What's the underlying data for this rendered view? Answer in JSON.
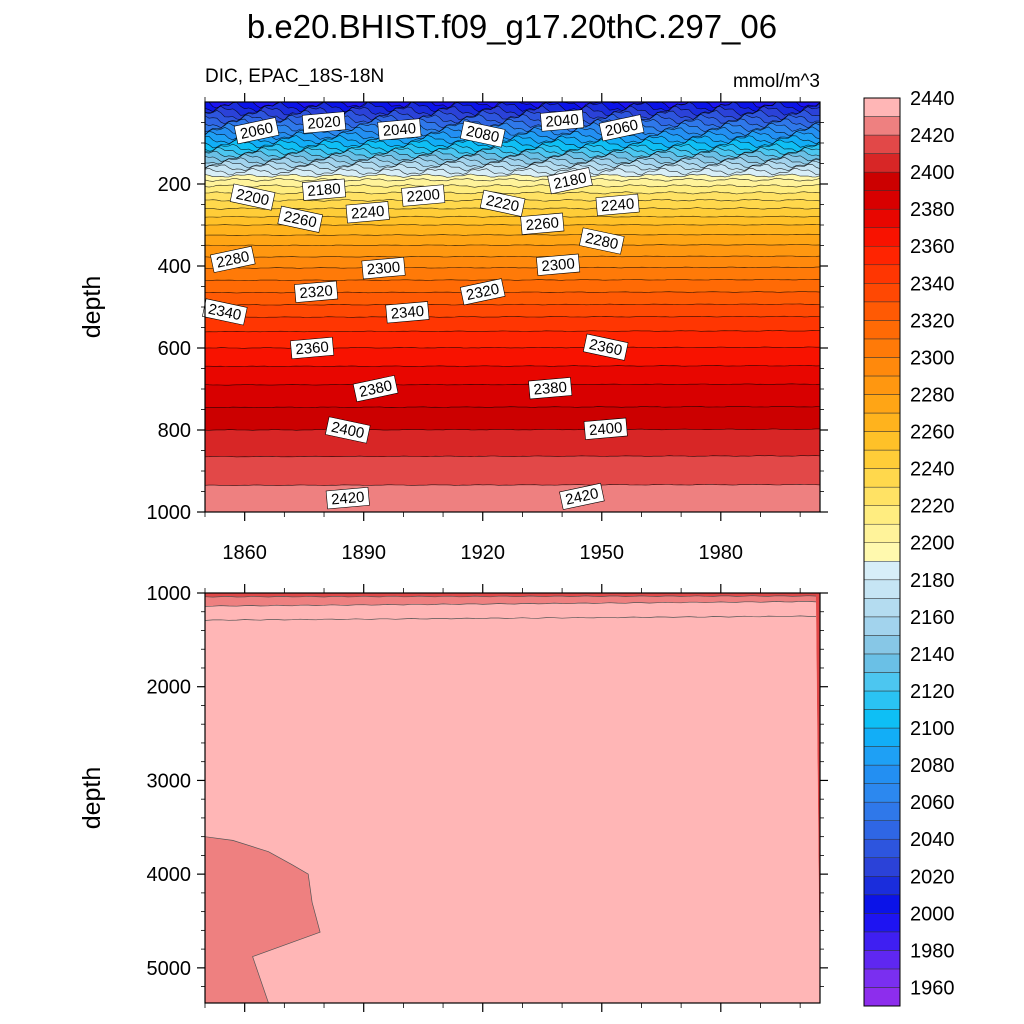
{
  "figure": {
    "title": "b.e20.BHIST.f09_g17.20thC.297_06",
    "left_string": "DIC, EPAC_18S-18N",
    "right_string": "mmol/m^3"
  },
  "chart_data": [
    {
      "type": "heatmap",
      "panel": "upper",
      "variable": "DIC",
      "region": "EPAC_18S-18N",
      "units": "mmol/m^3",
      "xlabel": "",
      "ylabel": "depth",
      "xlim": [
        1850,
        2005
      ],
      "ylim": [
        1000,
        0
      ],
      "x_ticks": [
        1860,
        1890,
        1920,
        1950,
        1980
      ],
      "y_ticks": [
        200,
        400,
        600,
        800,
        1000
      ],
      "contour_interval": 10,
      "isoline_depths": [
        {
          "level": 2000,
          "depth": 3
        },
        {
          "level": 2010,
          "depth": 12
        },
        {
          "level": 2020,
          "depth": 22
        },
        {
          "level": 2030,
          "depth": 32
        },
        {
          "level": 2040,
          "depth": 42
        },
        {
          "level": 2050,
          "depth": 52
        },
        {
          "level": 2060,
          "depth": 62
        },
        {
          "level": 2070,
          "depth": 72
        },
        {
          "level": 2080,
          "depth": 82
        },
        {
          "level": 2090,
          "depth": 92
        },
        {
          "level": 2100,
          "depth": 102
        },
        {
          "level": 2110,
          "depth": 112
        },
        {
          "level": 2120,
          "depth": 120
        },
        {
          "level": 2130,
          "depth": 128
        },
        {
          "level": 2140,
          "depth": 136
        },
        {
          "level": 2150,
          "depth": 144
        },
        {
          "level": 2160,
          "depth": 152
        },
        {
          "level": 2170,
          "depth": 160
        },
        {
          "level": 2180,
          "depth": 170
        },
        {
          "level": 2190,
          "depth": 180
        },
        {
          "level": 2200,
          "depth": 190
        },
        {
          "level": 2210,
          "depth": 205
        },
        {
          "level": 2220,
          "depth": 222
        },
        {
          "level": 2230,
          "depth": 240
        },
        {
          "level": 2240,
          "depth": 260
        },
        {
          "level": 2250,
          "depth": 280
        },
        {
          "level": 2260,
          "depth": 300
        },
        {
          "level": 2270,
          "depth": 325
        },
        {
          "level": 2280,
          "depth": 350
        },
        {
          "level": 2290,
          "depth": 378
        },
        {
          "level": 2300,
          "depth": 405
        },
        {
          "level": 2310,
          "depth": 435
        },
        {
          "level": 2320,
          "depth": 465
        },
        {
          "level": 2330,
          "depth": 495
        },
        {
          "level": 2340,
          "depth": 525
        },
        {
          "level": 2350,
          "depth": 560
        },
        {
          "level": 2360,
          "depth": 600
        },
        {
          "level": 2370,
          "depth": 645
        },
        {
          "level": 2380,
          "depth": 690
        },
        {
          "level": 2390,
          "depth": 745
        },
        {
          "level": 2400,
          "depth": 800
        },
        {
          "level": 2410,
          "depth": 865
        },
        {
          "level": 2420,
          "depth": 935
        }
      ],
      "contour_labels": [
        {
          "text": "2060",
          "x": 1863,
          "depth": 70
        },
        {
          "text": "2020",
          "x": 1880,
          "depth": 50
        },
        {
          "text": "2040",
          "x": 1899,
          "depth": 67
        },
        {
          "text": "2080",
          "x": 1920,
          "depth": 78
        },
        {
          "text": "2040",
          "x": 1940,
          "depth": 45
        },
        {
          "text": "2060",
          "x": 1955,
          "depth": 63
        },
        {
          "text": "2200",
          "x": 1862,
          "depth": 232
        },
        {
          "text": "2180",
          "x": 1880,
          "depth": 214
        },
        {
          "text": "2200",
          "x": 1905,
          "depth": 228
        },
        {
          "text": "2220",
          "x": 1925,
          "depth": 247
        },
        {
          "text": "2180",
          "x": 1942,
          "depth": 192
        },
        {
          "text": "2240",
          "x": 1891,
          "depth": 269
        },
        {
          "text": "2260",
          "x": 1874,
          "depth": 286
        },
        {
          "text": "2260",
          "x": 1935,
          "depth": 297
        },
        {
          "text": "2240",
          "x": 1954,
          "depth": 251
        },
        {
          "text": "2280",
          "x": 1857,
          "depth": 384
        },
        {
          "text": "2300",
          "x": 1895,
          "depth": 405
        },
        {
          "text": "2300",
          "x": 1939,
          "depth": 397
        },
        {
          "text": "2280",
          "x": 1950,
          "depth": 339
        },
        {
          "text": "2320",
          "x": 1878,
          "depth": 463
        },
        {
          "text": "2320",
          "x": 1920,
          "depth": 463
        },
        {
          "text": "2340",
          "x": 1855,
          "depth": 512
        },
        {
          "text": "2340",
          "x": 1901,
          "depth": 513
        },
        {
          "text": "2360",
          "x": 1877,
          "depth": 600
        },
        {
          "text": "2360",
          "x": 1951,
          "depth": 598
        },
        {
          "text": "2380",
          "x": 1893,
          "depth": 699
        },
        {
          "text": "2380",
          "x": 1937,
          "depth": 698
        },
        {
          "text": "2400",
          "x": 1886,
          "depth": 800
        },
        {
          "text": "2400",
          "x": 1951,
          "depth": 797
        },
        {
          "text": "2420",
          "x": 1886,
          "depth": 966
        },
        {
          "text": "2420",
          "x": 1945,
          "depth": 962
        }
      ]
    },
    {
      "type": "heatmap",
      "panel": "lower",
      "variable": "DIC",
      "xlabel": "",
      "ylabel": "depth",
      "xlim": [
        1850,
        2005
      ],
      "ylim": [
        5375,
        1000
      ],
      "y_ticks": [
        1000,
        2000,
        3000,
        4000,
        5000
      ],
      "isoline_depths": [
        {
          "level": 2420,
          "depth": 1040
        },
        {
          "level": 2430,
          "depth": 1140
        },
        {
          "level": 2440,
          "depth": 1290
        }
      ],
      "deep_region": {
        "level": 2440,
        "description_free": true,
        "boundary": [
          [
            1850,
            3600
          ],
          [
            1857,
            3640
          ],
          [
            1866,
            3760
          ],
          [
            1872,
            3900
          ],
          [
            1876,
            4000
          ],
          [
            1877,
            4300
          ],
          [
            1879,
            4620
          ],
          [
            1862,
            4880
          ],
          [
            1866,
            5375
          ]
        ]
      }
    }
  ],
  "colorbar": {
    "levels": [
      1960,
      1970,
      1980,
      1990,
      2000,
      2010,
      2020,
      2030,
      2040,
      2050,
      2060,
      2070,
      2080,
      2090,
      2100,
      2110,
      2120,
      2130,
      2140,
      2150,
      2160,
      2170,
      2180,
      2190,
      2200,
      2210,
      2220,
      2230,
      2240,
      2250,
      2260,
      2270,
      2280,
      2290,
      2300,
      2310,
      2320,
      2330,
      2340,
      2350,
      2360,
      2370,
      2380,
      2390,
      2400,
      2410,
      2420,
      2430,
      2440
    ],
    "labels": [
      "1960",
      "1980",
      "2000",
      "2020",
      "2040",
      "2060",
      "2080",
      "2100",
      "2120",
      "2140",
      "2160",
      "2180",
      "2200",
      "2220",
      "2240",
      "2260",
      "2280",
      "2300",
      "2320",
      "2340",
      "2360",
      "2380",
      "2400",
      "2420",
      "2440"
    ],
    "colors": [
      "#8d2ded",
      "#7a2ff0",
      "#5f27f1",
      "#3f1ff2",
      "#1e14f2",
      "#0b13e8",
      "#1a2ddc",
      "#2b42d8",
      "#2d55de",
      "#2f66e4",
      "#2f78ea",
      "#2c88ef",
      "#238ff2",
      "#1ea0f5",
      "#12aef7",
      "#0ebff5",
      "#2ac3f3",
      "#4cc6f0",
      "#6ac0e6",
      "#87c7e6",
      "#a2d3ed",
      "#b4dcf0",
      "#c6e5f4",
      "#d7eef8",
      "#fff9ae",
      "#fff39a",
      "#ffed80",
      "#ffe264",
      "#ffd84c",
      "#ffcd38",
      "#ffc128",
      "#ffb31d",
      "#ffa515",
      "#ff9710",
      "#ff890c",
      "#ff7a08",
      "#ff6a05",
      "#ff5a04",
      "#ff4803",
      "#ff3602",
      "#ff2401",
      "#f81200",
      "#e80600",
      "#d80000",
      "#cc0000",
      "#d82626",
      "#e24848",
      "#ee8080",
      "#ffb6b6"
    ]
  }
}
